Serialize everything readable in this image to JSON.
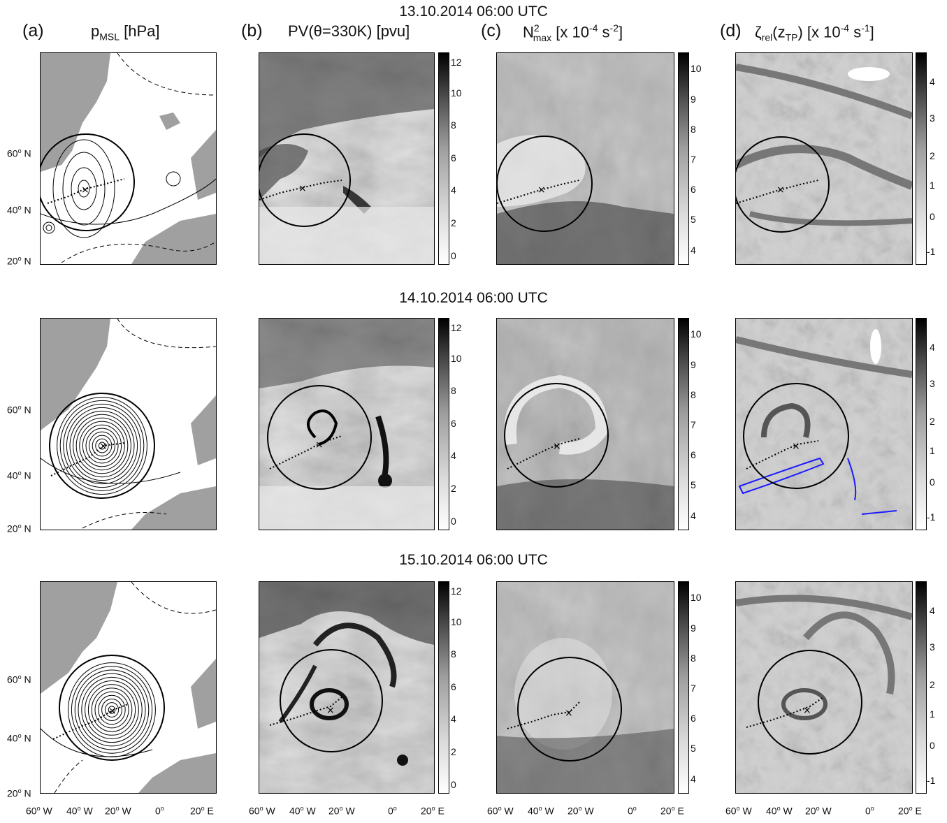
{
  "rows": [
    {
      "title": "13.10.2014 06:00 UTC"
    },
    {
      "title": "14.10.2014 06:00 UTC"
    },
    {
      "title": "15.10.2014 06:00 UTC"
    }
  ],
  "columns": [
    {
      "letter": "(a)",
      "title_main": "p",
      "title_sub": "MSL",
      "title_rest": " [hPa]"
    },
    {
      "letter": "(b)",
      "title_main": "PV(θ=330K) [pvu]"
    },
    {
      "letter": "(c)",
      "title_main": "N",
      "title_sup": "2",
      "title_sub": "max",
      "title_rest": " [x 10",
      "title_sup2": "-4",
      "title_rest2": " s",
      "title_sup3": "-2",
      "title_end": "]"
    },
    {
      "letter": "(d)",
      "title_main": "ζ",
      "title_sub": "rel",
      "title_rest": "(z",
      "title_sub2": "TP",
      "title_rest2": ") [x 10",
      "title_sup2": "-4",
      "title_rest3": " s",
      "title_sup3": "-1",
      "title_end": "]"
    }
  ],
  "colorbars": {
    "pv": [
      "12",
      "10",
      "8",
      "6",
      "4",
      "2",
      "0"
    ],
    "n2": [
      "10",
      "9",
      "8",
      "7",
      "6",
      "5",
      "4"
    ],
    "zeta": [
      "4",
      "3",
      "2",
      "1",
      "0",
      "-1"
    ]
  },
  "lat_labels": [
    {
      "deg": "60",
      "hem": "N"
    },
    {
      "deg": "40",
      "hem": "N"
    },
    {
      "deg": "20",
      "hem": "N"
    }
  ],
  "lon_labels": [
    {
      "deg": "60",
      "hem": "W"
    },
    {
      "deg": "40",
      "hem": "W"
    },
    {
      "deg": "20",
      "hem": "W"
    },
    {
      "deg": "0",
      "hem": ""
    },
    {
      "deg": "20",
      "hem": "E"
    }
  ],
  "colors": {
    "land": "#a0a0a0",
    "contour": "#000000",
    "blue_contour": "#1a1aff"
  }
}
